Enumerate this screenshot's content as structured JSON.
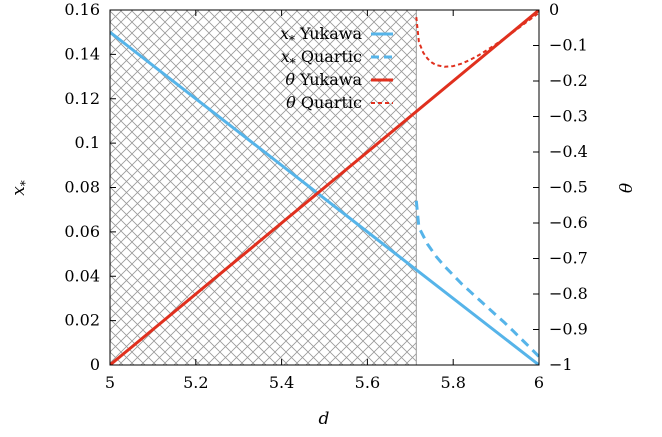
{
  "chart_data": {
    "type": "line",
    "xlabel": "d",
    "ylabel_left": "x_*",
    "ylabel_left_parts": [
      "x",
      "*"
    ],
    "ylabel_right": "θ",
    "xlim": [
      5,
      6
    ],
    "ylim_left": [
      0,
      0.16
    ],
    "ylim_right": [
      -1,
      0
    ],
    "x_ticks": [
      "5",
      "5.2",
      "5.4",
      "5.6",
      "5.8",
      "6"
    ],
    "y_left_ticks": [
      "0",
      "0.02",
      "0.04",
      "0.06",
      "0.08",
      "0.1",
      "0.12",
      "0.14",
      "0.16"
    ],
    "y_right_ticks": [
      "0",
      "−0.1",
      "−0.2",
      "−0.3",
      "−0.4",
      "−0.5",
      "−0.6",
      "−0.7",
      "−0.8",
      "−0.9",
      "−1"
    ],
    "hatched_region": {
      "x_start": 5,
      "x_end": 5.714,
      "hatch_color": "#999999"
    },
    "legend_position": "top-right",
    "series": [
      {
        "name": "x_* Yukawa",
        "label_var": "x",
        "label_sub": "*",
        "label_text": "Yukawa",
        "axis": "left",
        "color": "#56b4e9",
        "style": "solid",
        "x": [
          5,
          6
        ],
        "y": [
          0.15,
          0
        ]
      },
      {
        "name": "x_* Quartic",
        "label_var": "x",
        "label_sub": "*",
        "label_text": "Quartic",
        "axis": "left",
        "color": "#56b4e9",
        "style": "dashed",
        "x": [
          5.714,
          5.72,
          5.74,
          5.76,
          5.78,
          5.8,
          5.82,
          5.84,
          5.86,
          5.88,
          5.9,
          5.92,
          5.94,
          5.96,
          5.98,
          6.0
        ],
        "y": [
          0.074,
          0.062,
          0.0545,
          0.049,
          0.0445,
          0.0405,
          0.0365,
          0.033,
          0.0295,
          0.026,
          0.0225,
          0.019,
          0.0153,
          0.0115,
          0.0077,
          0.0038
        ]
      },
      {
        "name": "θ Yukawa",
        "label_var": "θ",
        "label_sub": "",
        "label_text": "Yukawa",
        "axis": "right",
        "color": "#e0301e",
        "style": "solid",
        "x": [
          5,
          6
        ],
        "y": [
          -1,
          0
        ]
      },
      {
        "name": "θ Quartic",
        "label_var": "θ",
        "label_sub": "",
        "label_text": "Quartic",
        "axis": "right",
        "color": "#e0301e",
        "style": "dotted",
        "x": [
          5.714,
          5.72,
          5.73,
          5.74,
          5.75,
          5.76,
          5.78,
          5.8,
          5.82,
          5.84,
          5.86,
          5.88,
          5.9,
          5.92,
          5.94,
          5.96,
          5.98,
          6.0
        ],
        "y": [
          -0.02,
          -0.09,
          -0.12,
          -0.137,
          -0.148,
          -0.155,
          -0.16,
          -0.158,
          -0.151,
          -0.14,
          -0.127,
          -0.112,
          -0.096,
          -0.079,
          -0.062,
          -0.044,
          -0.026,
          -0.008
        ]
      }
    ]
  }
}
